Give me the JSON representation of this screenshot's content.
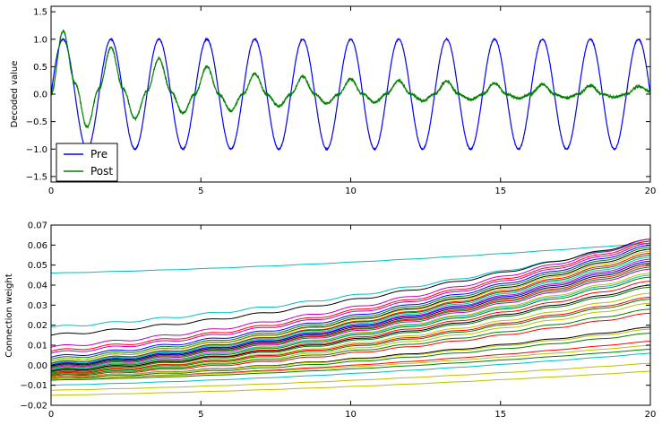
{
  "chart_data": [
    {
      "type": "line",
      "xlabel": "",
      "ylabel": "Decoded value",
      "xlim": [
        0,
        20
      ],
      "ylim": [
        -1.6,
        1.6
      ],
      "xticks": [
        0,
        5,
        10,
        15,
        20
      ],
      "xtick_labels": [
        "0",
        "5",
        "10",
        "15",
        "20"
      ],
      "yticks": [
        -1.5,
        -1.0,
        -0.5,
        0.0,
        0.5,
        1.0,
        1.5
      ],
      "ytick_labels": [
        "−1.5",
        "−1.0",
        "−0.5",
        "0.0",
        "0.5",
        "1.0",
        "1.5"
      ],
      "grid": false,
      "legend_position": "lower-left",
      "series": [
        {
          "name": "Pre",
          "color": "#0000ff",
          "description_period": 1.6,
          "x": [
            0,
            0.4,
            0.8,
            1.2,
            1.6,
            2.0,
            2.4,
            2.8,
            3.2,
            3.6,
            4.0,
            4.4,
            4.8,
            5.2,
            5.6,
            6.0,
            6.4,
            6.8,
            7.2,
            7.6,
            8.0,
            8.4,
            8.8,
            9.2,
            9.6,
            10.0,
            10.4,
            10.8,
            11.2,
            11.6,
            12.0,
            12.4,
            12.8,
            13.2,
            13.6,
            14.0,
            14.4,
            14.8,
            15.2,
            15.6,
            16.0,
            16.4,
            16.8,
            17.2,
            17.6,
            18.0,
            18.4,
            18.8,
            19.2,
            19.6,
            20.0
          ],
          "y": [
            0.0,
            1.0,
            0.0,
            -1.0,
            0.0,
            1.0,
            0.0,
            -1.0,
            0.0,
            1.0,
            0.0,
            -1.0,
            0.0,
            1.0,
            0.0,
            -1.0,
            0.0,
            1.0,
            0.0,
            -1.0,
            0.0,
            1.0,
            0.0,
            -1.0,
            0.0,
            1.0,
            0.0,
            -1.0,
            0.0,
            1.0,
            0.0,
            -1.0,
            0.0,
            1.0,
            0.0,
            -1.0,
            0.0,
            1.0,
            0.0,
            -1.0,
            0.0,
            1.0,
            0.0,
            -1.0,
            0.0,
            1.0,
            0.0,
            -1.0,
            0.0,
            1.0,
            0.0
          ]
        },
        {
          "name": "Post",
          "color": "#008000",
          "x": [
            0,
            0.4,
            0.8,
            1.2,
            1.6,
            2.0,
            2.4,
            2.8,
            3.2,
            3.6,
            4.0,
            4.4,
            4.8,
            5.2,
            5.6,
            6.0,
            6.4,
            6.8,
            7.2,
            7.6,
            8.0,
            8.4,
            8.8,
            9.2,
            9.6,
            10.0,
            10.4,
            10.8,
            11.2,
            11.6,
            12.0,
            12.4,
            12.8,
            13.2,
            13.6,
            14.0,
            14.4,
            14.8,
            15.2,
            15.6,
            16.0,
            16.4,
            16.8,
            17.2,
            17.6,
            18.0,
            18.4,
            18.8,
            19.2,
            19.6,
            20.0
          ],
          "y": [
            0.0,
            1.15,
            0.2,
            -0.6,
            0.1,
            0.85,
            0.1,
            -0.45,
            0.05,
            0.65,
            0.05,
            -0.35,
            0.0,
            0.5,
            0.0,
            -0.3,
            0.0,
            0.37,
            0.0,
            -0.22,
            0.0,
            0.32,
            0.0,
            -0.17,
            0.0,
            0.27,
            0.0,
            -0.15,
            0.0,
            0.25,
            0.0,
            -0.12,
            0.0,
            0.24,
            0.0,
            -0.1,
            0.0,
            0.2,
            0.0,
            -0.08,
            0.0,
            0.18,
            0.0,
            -0.07,
            0.0,
            0.16,
            0.0,
            -0.06,
            0.0,
            0.14,
            0.05
          ]
        }
      ]
    },
    {
      "type": "line",
      "xlabel": "",
      "ylabel": "Connection weight",
      "xlim": [
        0,
        20
      ],
      "ylim": [
        -0.02,
        0.07
      ],
      "xticks": [
        0,
        5,
        10,
        15,
        20
      ],
      "xtick_labels": [
        "0",
        "5",
        "10",
        "15",
        "20"
      ],
      "yticks": [
        -0.02,
        -0.01,
        0.0,
        0.01,
        0.02,
        0.03,
        0.04,
        0.05,
        0.06,
        0.07
      ],
      "ytick_labels": [
        "−0.02",
        "−0.01",
        "0.00",
        "0.01",
        "0.02",
        "0.03",
        "0.04",
        "0.05",
        "0.06",
        "0.07"
      ],
      "grid": false,
      "palette": [
        "#0000ff",
        "#008000",
        "#ff0000",
        "#00bfbf",
        "#bf00bf",
        "#bfbf00",
        "#000000"
      ],
      "series": [
        {
          "color": "#00bfbf",
          "start": 0.046,
          "end": 0.061
        },
        {
          "color": "#00bfbf",
          "start": 0.019,
          "end": 0.062
        },
        {
          "color": "#000000",
          "start": 0.015,
          "end": 0.063
        },
        {
          "color": "#bf00bf",
          "start": 0.009,
          "end": 0.063
        },
        {
          "color": "#ff0000",
          "start": 0.007,
          "end": 0.062
        },
        {
          "color": "#bf00bf",
          "start": 0.006,
          "end": 0.061
        },
        {
          "color": "#0000ff",
          "start": 0.004,
          "end": 0.06
        },
        {
          "color": "#008000",
          "start": 0.003,
          "end": 0.059
        },
        {
          "color": "#000000",
          "start": 0.002,
          "end": 0.058
        },
        {
          "color": "#bfbf00",
          "start": 0.002,
          "end": 0.057
        },
        {
          "color": "#ff0000",
          "start": 0.001,
          "end": 0.056
        },
        {
          "color": "#008000",
          "start": 0.001,
          "end": 0.055
        },
        {
          "color": "#00bfbf",
          "start": 0.0005,
          "end": 0.054
        },
        {
          "color": "#bf00bf",
          "start": 0.0,
          "end": 0.053
        },
        {
          "color": "#0000ff",
          "start": 0.0,
          "end": 0.052
        },
        {
          "color": "#000000",
          "start": -0.0005,
          "end": 0.051
        },
        {
          "color": "#ff0000",
          "start": -0.001,
          "end": 0.05
        },
        {
          "color": "#008000",
          "start": -0.001,
          "end": 0.049
        },
        {
          "color": "#bf00bf",
          "start": -0.0015,
          "end": 0.048
        },
        {
          "color": "#bfbf00",
          "start": -0.002,
          "end": 0.046
        },
        {
          "color": "#00bfbf",
          "start": -0.002,
          "end": 0.045
        },
        {
          "color": "#008000",
          "start": -0.0025,
          "end": 0.044
        },
        {
          "color": "#ff0000",
          "start": -0.003,
          "end": 0.042
        },
        {
          "color": "#000000",
          "start": -0.003,
          "end": 0.04
        },
        {
          "color": "#008000",
          "start": -0.0035,
          "end": 0.039
        },
        {
          "color": "#bfbf00",
          "start": -0.004,
          "end": 0.036
        },
        {
          "color": "#ff0000",
          "start": -0.004,
          "end": 0.034
        },
        {
          "color": "#008000",
          "start": -0.0045,
          "end": 0.033
        },
        {
          "color": "#bfbf00",
          "start": -0.005,
          "end": 0.031
        },
        {
          "color": "#008000",
          "start": -0.005,
          "end": 0.028
        },
        {
          "color": "#ff0000",
          "start": -0.0055,
          "end": 0.026
        },
        {
          "color": "#000000",
          "start": -0.006,
          "end": 0.019
        },
        {
          "color": "#bfbf00",
          "start": -0.006,
          "end": 0.018
        },
        {
          "color": "#008000",
          "start": -0.0065,
          "end": 0.016
        },
        {
          "color": "#ff0000",
          "start": -0.007,
          "end": 0.012
        },
        {
          "color": "#bfbf00",
          "start": -0.007,
          "end": 0.01
        },
        {
          "color": "#008000",
          "start": -0.0075,
          "end": 0.008
        },
        {
          "color": "#00bfbf",
          "start": -0.01,
          "end": 0.006
        },
        {
          "color": "#bfbf00",
          "start": -0.0125,
          "end": 0.001
        },
        {
          "color": "#bfbf00",
          "start": -0.015,
          "end": -0.003
        }
      ]
    }
  ],
  "legend": {
    "items": [
      {
        "label": "Pre",
        "color": "#0000ff"
      },
      {
        "label": "Post",
        "color": "#008000"
      }
    ]
  }
}
